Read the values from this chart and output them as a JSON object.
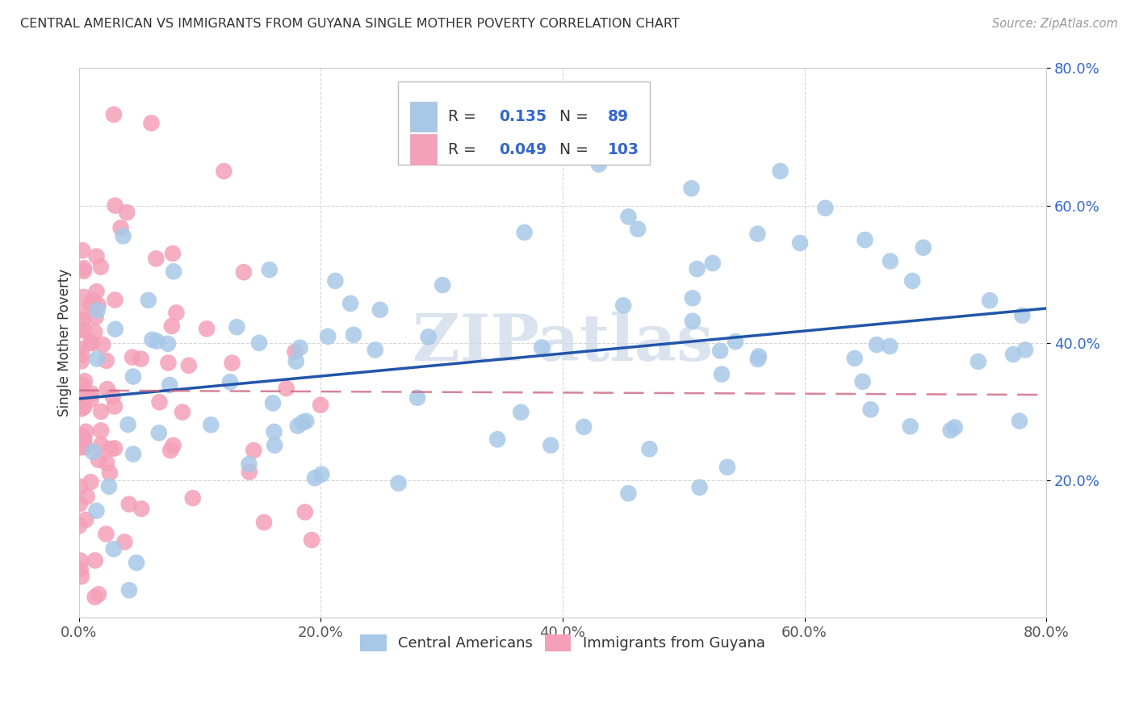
{
  "title": "CENTRAL AMERICAN VS IMMIGRANTS FROM GUYANA SINGLE MOTHER POVERTY CORRELATION CHART",
  "source": "Source: ZipAtlas.com",
  "ylabel": "Single Mother Poverty",
  "series1_label": "Central Americans",
  "series2_label": "Immigrants from Guyana",
  "series1_R": "0.135",
  "series1_N": "89",
  "series2_R": "0.049",
  "series2_N": "103",
  "series1_color": "#a8c8e8",
  "series2_color": "#f4a0b8",
  "series1_line_color": "#2255aa",
  "series2_line_color": "#cc6680",
  "watermark_color": "#ccd8e8",
  "xlim": [
    0.0,
    0.8
  ],
  "ylim": [
    0.0,
    0.8
  ],
  "xticks": [
    0.0,
    0.2,
    0.4,
    0.6,
    0.8
  ],
  "yticks": [
    0.2,
    0.4,
    0.6,
    0.8
  ],
  "xtick_labels": [
    "0.0%",
    "20.0%",
    "40.0%",
    "60.0%",
    "80.0%"
  ],
  "ytick_labels": [
    "20.0%",
    "40.0%",
    "60.0%",
    "80.0%"
  ],
  "title_color": "#333333",
  "grid_color": "#cccccc",
  "legend_text_color": "#3366cc",
  "background_color": "#ffffff"
}
